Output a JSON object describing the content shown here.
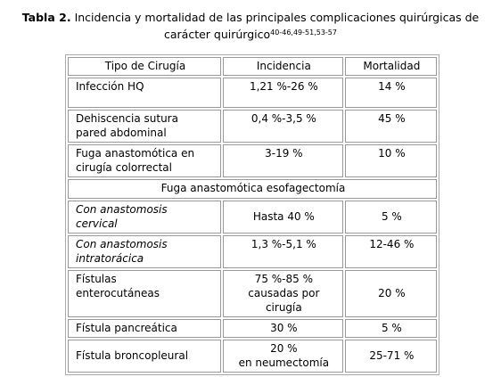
{
  "title": {
    "label": "Tabla 2.",
    "text": "Incidencia y mortalidad de las principales complicaciones quirúrgicas de carácter quirúrgico",
    "references": "40-46,49-51,53-57"
  },
  "table": {
    "header": [
      "Tipo de Cirugía",
      "Incidencia",
      "Mortalidad"
    ],
    "rows": [
      [
        "Infección HQ",
        "1,21 %-26 %",
        "14 %"
      ],
      [
        "Dehiscencia sutura\npared abdominal",
        "0,4 %-3,5 %",
        "45 %"
      ],
      [
        "Fuga anastomótica en\ncirugía colorrectal",
        "3-19 %",
        "10 %"
      ],
      [
        "Fuga anastomótica esofagectomía"
      ],
      [
        "Con anastomosis\ncervical",
        "Hasta 40 %",
        "5 %"
      ],
      [
        "Con anastomosis\nintratorácica",
        "1,3 %-5,1 %",
        "12-46 %"
      ],
      [
        "Fístulas\nenterocutáneas",
        "75 %-85 %\ncausadas por\ncirugía",
        "20 %"
      ],
      [
        "Fístula pancreática",
        "30 %",
        "5 %"
      ],
      [
        "Fístula broncopleural",
        "20 %\nen neumectomía",
        "25-71 %"
      ]
    ]
  }
}
